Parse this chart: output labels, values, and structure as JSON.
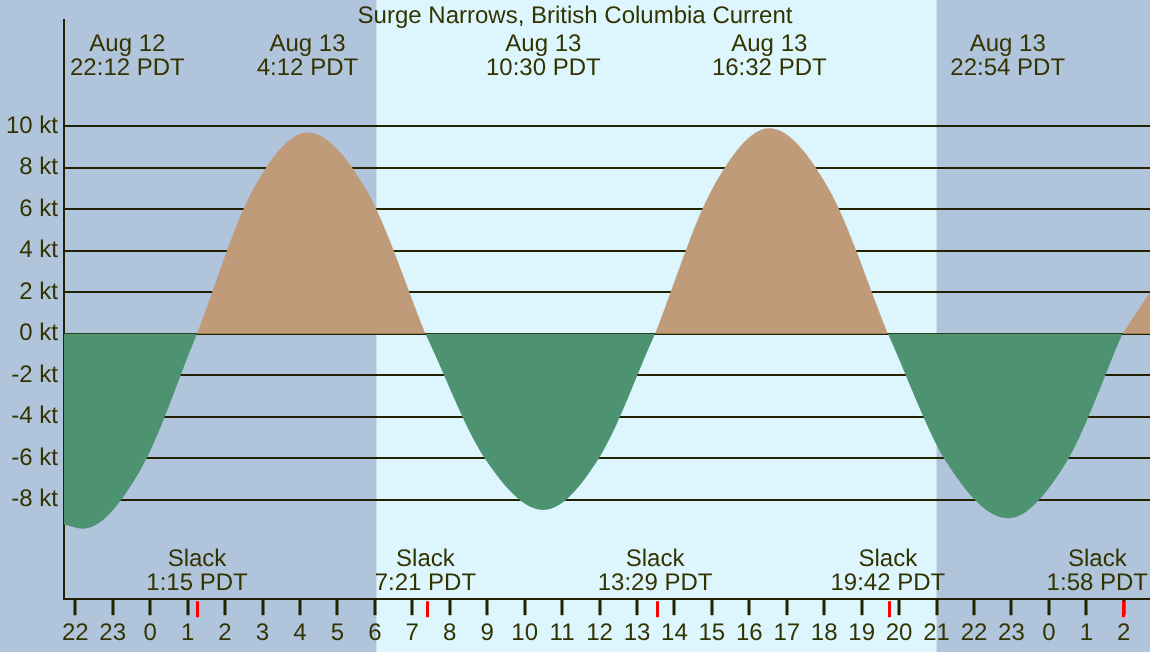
{
  "chart_data": {
    "type": "area",
    "title": "Surge Narrows, British Columbia Current",
    "x": [
      "--08-12T21:42",
      "--08-12T22:12",
      "--08-12T23:44",
      "--08-13T01:15",
      "--08-13T02:44",
      "--08-13T04:12",
      "--08-13T05:47",
      "--08-13T07:21",
      "--08-13T08:56",
      "--08-13T10:30",
      "--08-13T11:59",
      "--08-13T13:29",
      "--08-13T15:01",
      "--08-13T16:32",
      "--08-13T18:07",
      "--08-13T19:42",
      "--08-13T21:18",
      "--08-13T22:54",
      "--08-14T00:26",
      "--08-14T01:58",
      "--08-14T02:42"
    ],
    "series": [
      {
        "color": "#bf9b7a",
        "values": [
          null,
          null,
          null,
          0,
          6.9,
          9.7,
          6.9,
          0,
          null,
          null,
          null,
          0,
          7.0,
          9.9,
          7.0,
          0,
          null,
          null,
          null,
          0,
          2.0
        ]
      },
      {
        "color": "#4e9371",
        "values": [
          -9.2,
          -9.4,
          -6.6,
          0,
          null,
          null,
          null,
          0,
          -6.0,
          -8.5,
          -6.0,
          0,
          null,
          null,
          null,
          0,
          -6.3,
          -8.9,
          -6.3,
          0,
          null
        ]
      }
    ],
    "xlim": [
      "--08-12T21:42",
      "--08-14T02:42"
    ],
    "xticks": [
      {
        "value": "--08-12T22:00",
        "label": "22"
      },
      {
        "value": "--08-12T23:00",
        "label": "23"
      },
      {
        "value": "--08-13T00:00",
        "label": "0"
      },
      {
        "value": "--08-13T01:00",
        "label": "1"
      },
      {
        "value": "--08-13T02:00",
        "label": "2"
      },
      {
        "value": "--08-13T03:00",
        "label": "3"
      },
      {
        "value": "--08-13T04:00",
        "label": "4"
      },
      {
        "value": "--08-13T05:00",
        "label": "5"
      },
      {
        "value": "--08-13T06:00",
        "label": "6"
      },
      {
        "value": "--08-13T07:00",
        "label": "7"
      },
      {
        "value": "--08-13T08:00",
        "label": "8"
      },
      {
        "value": "--08-13T09:00",
        "label": "9"
      },
      {
        "value": "--08-13T10:00",
        "label": "10"
      },
      {
        "value": "--08-13T11:00",
        "label": "11"
      },
      {
        "value": "--08-13T12:00",
        "label": "12"
      },
      {
        "value": "--08-13T13:00",
        "label": "13"
      },
      {
        "value": "--08-13T14:00",
        "label": "14"
      },
      {
        "value": "--08-13T15:00",
        "label": "15"
      },
      {
        "value": "--08-13T16:00",
        "label": "16"
      },
      {
        "value": "--08-13T17:00",
        "label": "17"
      },
      {
        "value": "--08-13T18:00",
        "label": "18"
      },
      {
        "value": "--08-13T19:00",
        "label": "19"
      },
      {
        "value": "--08-13T20:00",
        "label": "20"
      },
      {
        "value": "--08-13T21:00",
        "label": "21"
      },
      {
        "value": "--08-13T22:00",
        "label": "22"
      },
      {
        "value": "--08-13T23:00",
        "label": "23"
      },
      {
        "value": "--08-14T00:00",
        "label": "0"
      },
      {
        "value": "--08-14T01:00",
        "label": "1"
      },
      {
        "value": "--08-14T02:00",
        "label": "2"
      }
    ],
    "ylim": [
      -12.8,
      15.1
    ],
    "yticks": [
      {
        "value": -8,
        "label": "-8 kt"
      },
      {
        "value": -6,
        "label": "-6 kt"
      },
      {
        "value": -4,
        "label": "-4 kt"
      },
      {
        "value": -2,
        "label": "-2 kt"
      },
      {
        "value": 0,
        "label": "0 kt"
      },
      {
        "value": 2,
        "label": "2 kt"
      },
      {
        "value": 4,
        "label": "4 kt"
      },
      {
        "value": 6,
        "label": "6 kt"
      },
      {
        "value": 8,
        "label": "8 kt"
      },
      {
        "value": 10,
        "label": "10 kt"
      }
    ],
    "grid": "y",
    "legend": false,
    "bands": [
      {
        "axis": "x",
        "from": "--08-12T21:42",
        "to": "--08-13T06:03",
        "color": "#b0c4dc"
      },
      {
        "axis": "x",
        "from": "--08-13T06:03",
        "to": "--08-13T21:00",
        "color": "#ddf6fd"
      },
      {
        "axis": "x",
        "from": "--08-13T21:00",
        "to": "--08-14T02:42",
        "color": "#b0c4dc"
      }
    ],
    "annotations": [
      "Aug 12\n22:12 PDT",
      "Aug 13\n4:12 PDT",
      "Aug 13\n10:30 PDT",
      "Aug 13\n16:32 PDT",
      "Aug 13\n22:54 PDT",
      "Slack\n1:15 PDT",
      "Slack\n7:21 PDT",
      "Slack\n13:29 PDT",
      "Slack\n19:42 PDT",
      "Slack\n1:58 PDT"
    ]
  }
}
